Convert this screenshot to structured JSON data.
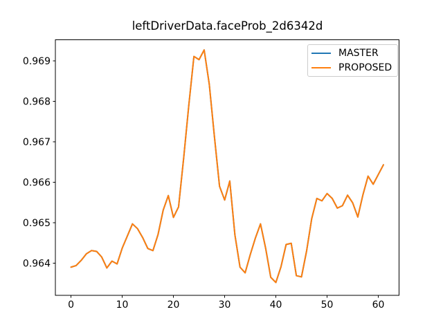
{
  "chart_data": {
    "type": "line",
    "title": "leftDriverData.faceProb_2d6342d",
    "xlabel": "",
    "ylabel": "",
    "grid": false,
    "legend_position": "upper right",
    "background_color": "#ffffff",
    "xlim": [
      -3.05,
      64.05
    ],
    "ylim": [
      0.9632,
      0.96952
    ],
    "xticks": [
      0,
      10,
      20,
      30,
      40,
      50,
      60
    ],
    "yticks": [
      0.964,
      0.965,
      0.966,
      0.967,
      0.968,
      0.969
    ],
    "ytick_labels": [
      "0.964",
      "0.965",
      "0.966",
      "0.967",
      "0.968",
      "0.969"
    ],
    "x": [
      0,
      1,
      2,
      3,
      4,
      5,
      6,
      7,
      8,
      9,
      10,
      11,
      12,
      13,
      14,
      15,
      16,
      17,
      18,
      19,
      20,
      21,
      22,
      23,
      24,
      25,
      26,
      27,
      28,
      29,
      30,
      31,
      32,
      33,
      34,
      35,
      36,
      37,
      38,
      39,
      40,
      41,
      42,
      43,
      44,
      45,
      46,
      47,
      48,
      49,
      50,
      51,
      52,
      53,
      54,
      55,
      56,
      57,
      58,
      59,
      60,
      61
    ],
    "series": [
      {
        "name": "MASTER",
        "color": "#1f77b4",
        "values": [
          0.9639,
          0.96394,
          0.96407,
          0.96423,
          0.96431,
          0.96429,
          0.96415,
          0.96388,
          0.96405,
          0.96398,
          0.96437,
          0.96467,
          0.96497,
          0.96485,
          0.96463,
          0.96436,
          0.96431,
          0.96471,
          0.96531,
          0.96567,
          0.96513,
          0.96539,
          0.9666,
          0.9679,
          0.96911,
          0.96903,
          0.96927,
          0.96842,
          0.96713,
          0.9659,
          0.96556,
          0.96603,
          0.9647,
          0.9639,
          0.96376,
          0.96421,
          0.96462,
          0.96497,
          0.96437,
          0.96365,
          0.96352,
          0.96391,
          0.96446,
          0.96449,
          0.96369,
          0.96366,
          0.9643,
          0.9651,
          0.9656,
          0.96554,
          0.96572,
          0.9656,
          0.96536,
          0.96542,
          0.96568,
          0.96549,
          0.96514,
          0.96569,
          0.96615,
          0.96595,
          0.96619,
          0.96643
        ]
      },
      {
        "name": "PROPOSED",
        "color": "#ff7f0e",
        "values": [
          0.9639,
          0.96394,
          0.96407,
          0.96423,
          0.96431,
          0.96429,
          0.96415,
          0.96388,
          0.96405,
          0.96398,
          0.96437,
          0.96467,
          0.96497,
          0.96485,
          0.96463,
          0.96436,
          0.96431,
          0.96471,
          0.96531,
          0.96567,
          0.96513,
          0.96539,
          0.9666,
          0.9679,
          0.96911,
          0.96903,
          0.96927,
          0.96842,
          0.96713,
          0.9659,
          0.96556,
          0.96603,
          0.9647,
          0.9639,
          0.96376,
          0.96421,
          0.96462,
          0.96497,
          0.96437,
          0.96365,
          0.96352,
          0.96391,
          0.96446,
          0.96449,
          0.96369,
          0.96366,
          0.9643,
          0.9651,
          0.9656,
          0.96554,
          0.96572,
          0.9656,
          0.96536,
          0.96542,
          0.96568,
          0.96549,
          0.96514,
          0.96569,
          0.96615,
          0.96595,
          0.96619,
          0.96643
        ]
      }
    ]
  }
}
